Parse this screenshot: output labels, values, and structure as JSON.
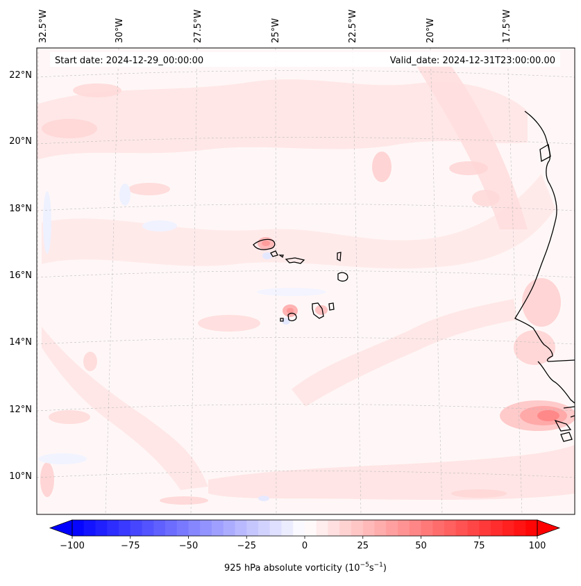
{
  "header": {
    "start_date": "Start date: 2024-12-29_00:00:00",
    "valid_date": "Valid_date: 2024-12-31T23:00:00.00"
  },
  "grid": {
    "lon_labels": [
      "32.5°W",
      "30°W",
      "27.5°W",
      "25°W",
      "22.5°W",
      "20°W",
      "17.5°W"
    ],
    "lat_labels": [
      "22°N",
      "20°N",
      "18°N",
      "16°N",
      "14°N",
      "12°N",
      "10°N"
    ]
  },
  "colorbar": {
    "label_main": "925 hPa absolute vorticity (10",
    "label_exp1": "−5",
    "label_mid": "s",
    "label_exp2": "−1",
    "label_end": ")",
    "ticks": [
      "−100",
      "−75",
      "−50",
      "−25",
      "0",
      "25",
      "50",
      "75",
      "100"
    ],
    "tick_values": [
      -100,
      -75,
      -50,
      -25,
      0,
      25,
      50,
      75,
      100
    ],
    "range": [
      -100,
      100
    ],
    "step": 5,
    "colormap": "bwr",
    "low_color": "#0000ff",
    "mid_color": "#ffffff",
    "high_color": "#ff0000"
  },
  "map": {
    "background_color": "#fff7f7",
    "positive_color": "#ff0000",
    "negative_color": "#0000ff",
    "coastline_color": "#000000"
  }
}
